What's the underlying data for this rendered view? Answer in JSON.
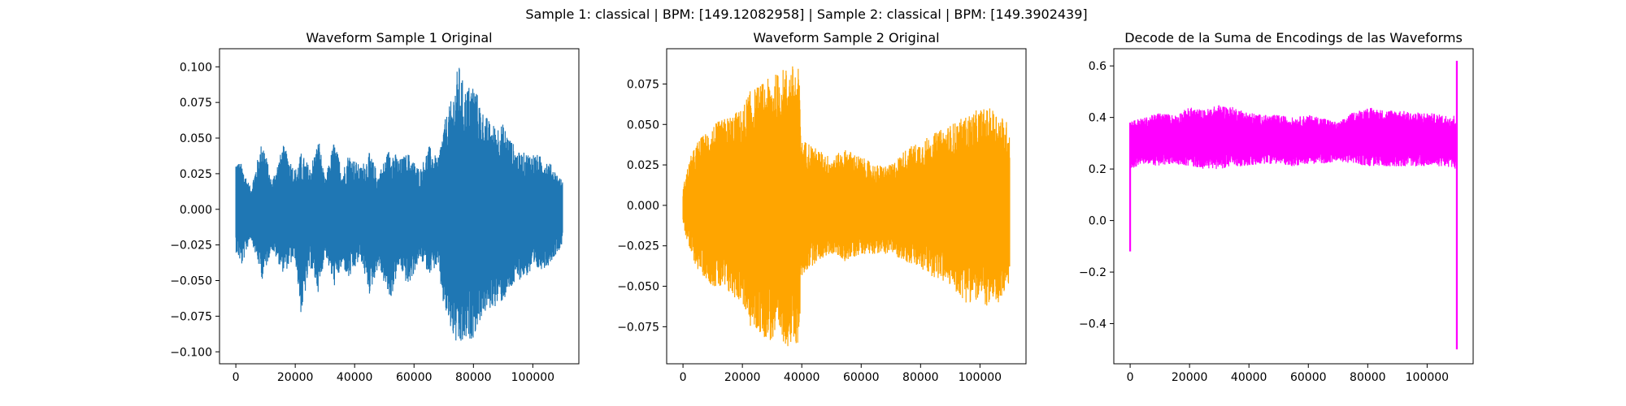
{
  "figure": {
    "suptitle": "Sample 1: classical | BPM: [149.12082958] | Sample 2: classical | BPM: [149.3902439]"
  },
  "chart_data": [
    {
      "type": "line",
      "title": "Waveform Sample 1 Original",
      "xlabel": "",
      "ylabel": "",
      "color": "#1f77b4",
      "xlim": [
        -5500,
        115500
      ],
      "ylim": [
        -0.1084,
        0.1127
      ],
      "xticks": [
        0,
        20000,
        40000,
        60000,
        80000,
        100000
      ],
      "xtick_labels": [
        "0",
        "20000",
        "40000",
        "60000",
        "80000",
        "100000"
      ],
      "yticks": [
        -0.1,
        -0.075,
        -0.05,
        -0.025,
        0.0,
        0.025,
        0.05,
        0.075,
        0.1
      ],
      "ytick_labels": [
        "−0.100",
        "−0.075",
        "−0.050",
        "−0.025",
        "0.000",
        "0.025",
        "0.050",
        "0.075",
        "0.100"
      ],
      "grid": false,
      "envelope": {
        "x": [
          0,
          2000,
          5000,
          9000,
          12000,
          16000,
          20000,
          22000,
          25000,
          28000,
          30000,
          33000,
          36000,
          38000,
          42000,
          45000,
          48000,
          52000,
          55000,
          58000,
          62000,
          65000,
          68000,
          70000,
          73000,
          75000,
          77000,
          80000,
          83000,
          86000,
          90000,
          95000,
          100000,
          105000,
          110000
        ],
        "upper": [
          0.035,
          0.032,
          0.015,
          0.05,
          0.02,
          0.045,
          0.028,
          0.04,
          0.03,
          0.05,
          0.02,
          0.048,
          0.028,
          0.04,
          0.03,
          0.04,
          0.025,
          0.045,
          0.035,
          0.04,
          0.028,
          0.045,
          0.035,
          0.06,
          0.08,
          0.103,
          0.085,
          0.09,
          0.07,
          0.06,
          0.06,
          0.04,
          0.04,
          0.035,
          0.02
        ],
        "lower": [
          -0.03,
          -0.04,
          -0.02,
          -0.05,
          -0.028,
          -0.045,
          -0.035,
          -0.075,
          -0.04,
          -0.06,
          -0.03,
          -0.055,
          -0.04,
          -0.05,
          -0.035,
          -0.06,
          -0.04,
          -0.065,
          -0.04,
          -0.055,
          -0.035,
          -0.045,
          -0.04,
          -0.07,
          -0.09,
          -0.1,
          -0.095,
          -0.09,
          -0.075,
          -0.07,
          -0.065,
          -0.05,
          -0.045,
          -0.04,
          -0.025
        ]
      }
    },
    {
      "type": "line",
      "title": "Waveform Sample 2 Original",
      "xlabel": "",
      "ylabel": "",
      "color": "#ffa500",
      "xlim": [
        -5500,
        115500
      ],
      "ylim": [
        -0.0979,
        0.0968
      ],
      "xticks": [
        0,
        20000,
        40000,
        60000,
        80000,
        100000
      ],
      "xtick_labels": [
        "0",
        "20000",
        "40000",
        "60000",
        "80000",
        "100000"
      ],
      "yticks": [
        -0.075,
        -0.05,
        -0.025,
        0.0,
        0.025,
        0.05,
        0.075
      ],
      "ytick_labels": [
        "−0.075",
        "−0.050",
        "−0.025",
        "0.000",
        "0.025",
        "0.050",
        "0.075"
      ],
      "grid": false,
      "envelope": {
        "x": [
          0,
          1000,
          2500,
          5000,
          10000,
          15000,
          20000,
          22000,
          26000,
          30000,
          34000,
          37000,
          39000,
          40000,
          42000,
          45000,
          50000,
          55000,
          60000,
          65000,
          70000,
          75000,
          80000,
          85000,
          90000,
          95000,
          100000,
          105000,
          110000
        ],
        "upper": [
          0.01,
          0.02,
          0.03,
          0.04,
          0.05,
          0.055,
          0.06,
          0.07,
          0.075,
          0.08,
          0.085,
          0.087,
          0.085,
          0.04,
          0.04,
          0.035,
          0.03,
          0.035,
          0.03,
          0.025,
          0.025,
          0.035,
          0.04,
          0.045,
          0.05,
          0.055,
          0.06,
          0.06,
          0.05
        ],
        "lower": [
          -0.01,
          -0.02,
          -0.03,
          -0.04,
          -0.05,
          -0.055,
          -0.06,
          -0.075,
          -0.08,
          -0.085,
          -0.085,
          -0.09,
          -0.085,
          -0.045,
          -0.04,
          -0.035,
          -0.03,
          -0.035,
          -0.03,
          -0.03,
          -0.03,
          -0.035,
          -0.04,
          -0.045,
          -0.05,
          -0.06,
          -0.06,
          -0.065,
          -0.05
        ]
      }
    },
    {
      "type": "line",
      "title": "Decode de la Suma de Encodings de las Waveforms",
      "xlabel": "",
      "ylabel": "",
      "color": "#ff00ff",
      "xlim": [
        -5500,
        115500
      ],
      "ylim": [
        -0.5558,
        0.6667
      ],
      "xticks": [
        0,
        20000,
        40000,
        60000,
        80000,
        100000
      ],
      "xtick_labels": [
        "0",
        "20000",
        "40000",
        "60000",
        "80000",
        "100000"
      ],
      "yticks": [
        -0.4,
        -0.2,
        0.0,
        0.2,
        0.4,
        0.6
      ],
      "ytick_labels": [
        "−0.4",
        "−0.2",
        "0.0",
        "0.2",
        "0.4",
        "0.6"
      ],
      "grid": false,
      "envelope": {
        "x": [
          0,
          5000,
          10000,
          15000,
          20000,
          25000,
          30000,
          35000,
          40000,
          45000,
          50000,
          55000,
          60000,
          65000,
          70000,
          75000,
          80000,
          85000,
          90000,
          95000,
          100000,
          105000,
          110000
        ],
        "upper": [
          0.39,
          0.4,
          0.42,
          0.41,
          0.44,
          0.43,
          0.45,
          0.44,
          0.42,
          0.41,
          0.41,
          0.4,
          0.41,
          0.4,
          0.38,
          0.42,
          0.44,
          0.43,
          0.43,
          0.42,
          0.42,
          0.41,
          0.41
        ],
        "lower": [
          0.2,
          0.22,
          0.21,
          0.22,
          0.21,
          0.2,
          0.2,
          0.21,
          0.21,
          0.22,
          0.22,
          0.21,
          0.22,
          0.22,
          0.23,
          0.22,
          0.21,
          0.21,
          0.21,
          0.21,
          0.21,
          0.21,
          0.2
        ]
      },
      "spikes": [
        {
          "x": 0,
          "y0": -0.12,
          "y1": 0.38
        },
        {
          "x": 110000,
          "y0": -0.5,
          "y1": 0.62
        }
      ]
    }
  ]
}
